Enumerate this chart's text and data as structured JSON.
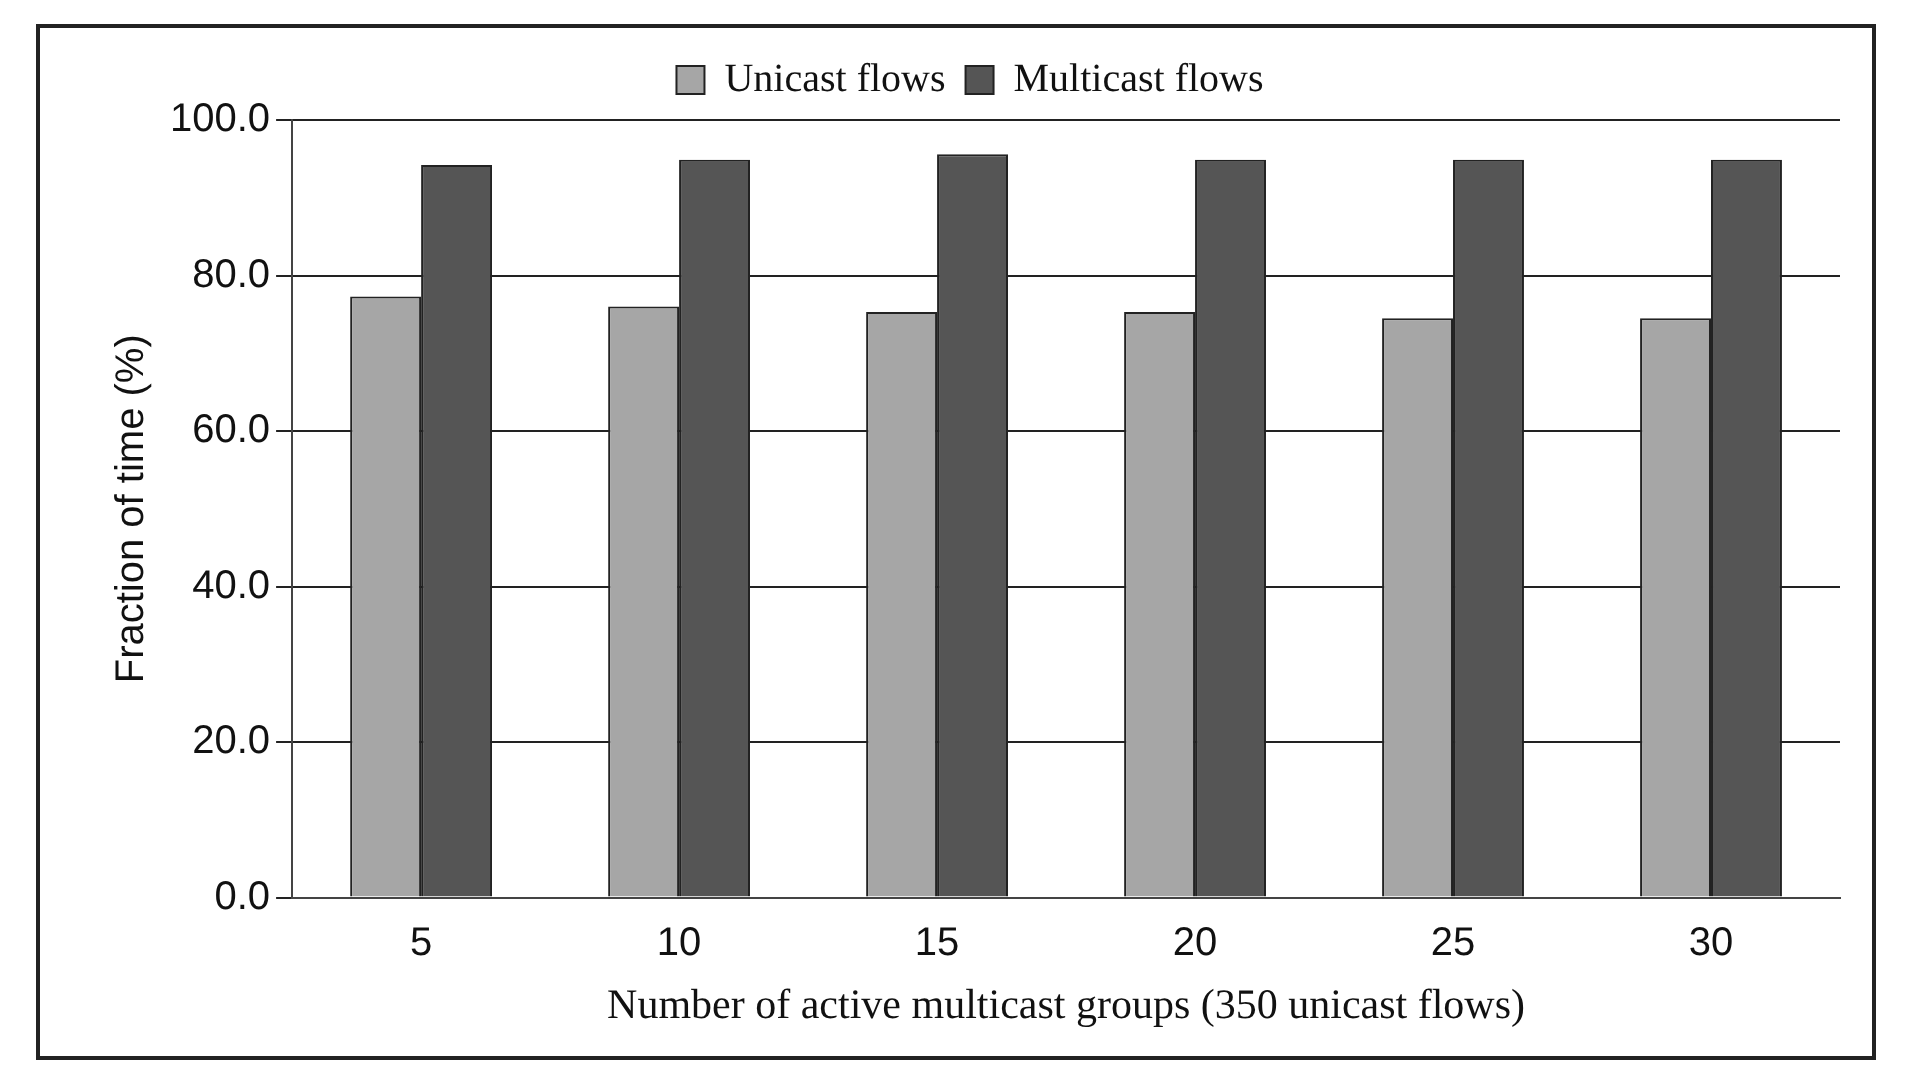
{
  "chart_data": {
    "type": "bar",
    "xlabel": "Number of active multicast groups (350 unicast flows)",
    "ylabel": "Fraction of time (%)",
    "categories": [
      "5",
      "10",
      "15",
      "20",
      "25",
      "30"
    ],
    "series": [
      {
        "name": "Unicast flows",
        "color": "#a6a6a6",
        "values": [
          77.3,
          76.0,
          75.3,
          75.3,
          74.5,
          74.5
        ]
      },
      {
        "name": "Multicast flows",
        "color": "#555555",
        "values": [
          94.2,
          94.9,
          95.6,
          94.9,
          94.9,
          94.9
        ]
      }
    ],
    "ylim": [
      0,
      100
    ],
    "yticks": [
      {
        "value": 0,
        "label": "0.0"
      },
      {
        "value": 20,
        "label": "20.0"
      },
      {
        "value": 40,
        "label": "40.0"
      },
      {
        "value": 60,
        "label": "60.0"
      },
      {
        "value": 80,
        "label": "80.0"
      },
      {
        "value": 100,
        "label": "100.0"
      }
    ],
    "grid": "y",
    "legend": "top"
  }
}
